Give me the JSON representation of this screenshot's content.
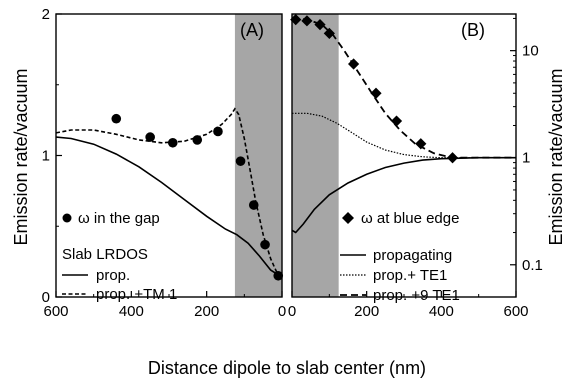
{
  "figure": {
    "xlabel": "Distance dipole to slab center (nm)",
    "ylabel_left": "Emission rate/vacuum",
    "ylabel_right": "Emission rate/vacuum"
  },
  "chart_data": [
    {
      "panel": "A",
      "panel_label": "(A)",
      "type": "line",
      "x_axis": {
        "range": [
          600,
          0
        ],
        "ticks": [
          600,
          400,
          200,
          0
        ],
        "tick_labels": [
          "600",
          "400",
          "200",
          "0"
        ]
      },
      "y_axis": {
        "scale": "linear",
        "range": [
          0,
          2
        ],
        "ticks": [
          0,
          1,
          2
        ],
        "tick_labels": [
          "0",
          "1",
          "2"
        ]
      },
      "shaded_region_x": [
        0,
        125
      ],
      "series": [
        {
          "name": "ω in the gap",
          "style": "markers",
          "marker": "circle",
          "points": [
            [
              440,
              1.26
            ],
            [
              350,
              1.13
            ],
            [
              290,
              1.09
            ],
            [
              225,
              1.11
            ],
            [
              170,
              1.17
            ],
            [
              110,
              0.96
            ],
            [
              75,
              0.65
            ],
            [
              45,
              0.37
            ],
            [
              10,
              0.15
            ]
          ]
        },
        {
          "name": "prop.",
          "style": "solid",
          "points": [
            [
              600,
              1.13
            ],
            [
              560,
              1.12
            ],
            [
              500,
              1.08
            ],
            [
              440,
              1.01
            ],
            [
              380,
              0.92
            ],
            [
              320,
              0.81
            ],
            [
              260,
              0.69
            ],
            [
              200,
              0.57
            ],
            [
              150,
              0.48
            ],
            [
              120,
              0.44
            ],
            [
              90,
              0.38
            ],
            [
              60,
              0.29
            ],
            [
              30,
              0.19
            ],
            [
              0,
              0.14
            ]
          ]
        },
        {
          "name": "prop. +TM 1",
          "style": "dashed",
          "points": [
            [
              600,
              1.16
            ],
            [
              560,
              1.18
            ],
            [
              500,
              1.18
            ],
            [
              440,
              1.15
            ],
            [
              380,
              1.11
            ],
            [
              320,
              1.09
            ],
            [
              260,
              1.1
            ],
            [
              200,
              1.15
            ],
            [
              160,
              1.22
            ],
            [
              135,
              1.29
            ],
            [
              125,
              1.33
            ],
            [
              115,
              1.29
            ],
            [
              100,
              1.12
            ],
            [
              85,
              0.9
            ],
            [
              70,
              0.68
            ],
            [
              50,
              0.44
            ],
            [
              30,
              0.27
            ],
            [
              15,
              0.18
            ],
            [
              0,
              0.15
            ]
          ]
        }
      ],
      "legend": {
        "marker_entry": "ω in the gap",
        "title": "Slab LRDOS",
        "entries": [
          "prop.",
          "prop. +TM 1"
        ]
      }
    },
    {
      "panel": "B",
      "panel_label": "(B)",
      "type": "line",
      "x_axis": {
        "range": [
          0,
          600
        ],
        "ticks": [
          0,
          200,
          400,
          600
        ],
        "tick_labels": [
          "0",
          "200",
          "400",
          "600"
        ]
      },
      "y_axis": {
        "scale": "log",
        "range": [
          0.05,
          22
        ],
        "ticks": [
          0.1,
          1,
          10
        ],
        "tick_labels": [
          "0.1",
          "1",
          "10"
        ]
      },
      "shaded_region_x": [
        0,
        125
      ],
      "series": [
        {
          "name": "ω at blue edge",
          "style": "markers",
          "marker": "diamond",
          "points": [
            [
              10,
              19.5
            ],
            [
              40,
              19
            ],
            [
              75,
              17.5
            ],
            [
              100,
              14.5
            ],
            [
              165,
              7.5
            ],
            [
              225,
              4
            ],
            [
              280,
              2.2
            ],
            [
              345,
              1.35
            ],
            [
              430,
              1.0
            ]
          ]
        },
        {
          "name": "propagating",
          "style": "solid",
          "points": [
            [
              0,
              0.21
            ],
            [
              10,
              0.2
            ],
            [
              30,
              0.24
            ],
            [
              60,
              0.33
            ],
            [
              100,
              0.45
            ],
            [
              150,
              0.58
            ],
            [
              200,
              0.7
            ],
            [
              250,
              0.81
            ],
            [
              300,
              0.89
            ],
            [
              350,
              0.95
            ],
            [
              400,
              0.98
            ],
            [
              450,
              0.99
            ],
            [
              500,
              1.0
            ],
            [
              600,
              1.0
            ]
          ]
        },
        {
          "name": "prop.+ TE1",
          "style": "dotted",
          "points": [
            [
              0,
              2.6
            ],
            [
              40,
              2.6
            ],
            [
              80,
              2.45
            ],
            [
              120,
              2.1
            ],
            [
              160,
              1.72
            ],
            [
              200,
              1.4
            ],
            [
              250,
              1.18
            ],
            [
              300,
              1.07
            ],
            [
              350,
              1.02
            ],
            [
              400,
              1.0
            ],
            [
              600,
              1.0
            ]
          ]
        },
        {
          "name": "prop. +9 TE1",
          "style": "dashed",
          "points": [
            [
              0,
              20
            ],
            [
              40,
              19.6
            ],
            [
              80,
              17.5
            ],
            [
              110,
              14
            ],
            [
              140,
              10
            ],
            [
              175,
              6.5
            ],
            [
              210,
              4.2
            ],
            [
              250,
              2.6
            ],
            [
              290,
              1.8
            ],
            [
              330,
              1.35
            ],
            [
              380,
              1.1
            ],
            [
              430,
              1.0
            ],
            [
              480,
              1.0
            ],
            [
              600,
              1.0
            ]
          ]
        }
      ],
      "legend": {
        "marker_entry": "ω at blue edge",
        "entries": [
          "propagating",
          "prop.+ TE1",
          "prop. +9 TE1"
        ]
      }
    }
  ]
}
